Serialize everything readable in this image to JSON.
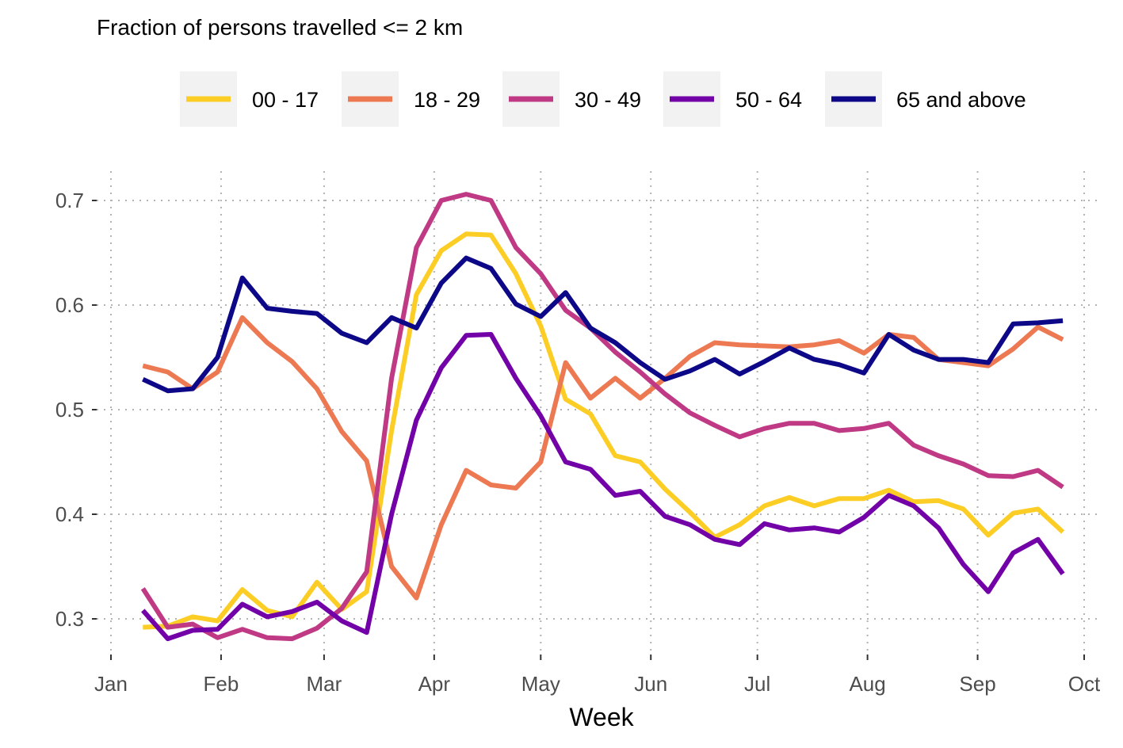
{
  "chart_data": {
    "type": "line",
    "title": "Fraction of persons travelled <= 2 km",
    "xlabel": "Week",
    "ylabel": "",
    "x_ticks": [
      "Jan",
      "Feb",
      "Mar",
      "Apr",
      "May",
      "Jun",
      "Jul",
      "Aug",
      "Sep",
      "Oct"
    ],
    "y_ticks": [
      "0.3",
      "0.4",
      "0.5",
      "0.6",
      "0.7"
    ],
    "ylim": [
      0.26,
      0.73
    ],
    "grid": true,
    "legend_position": "top",
    "x": [
      "2020-01-10",
      "2020-01-17",
      "2020-01-24",
      "2020-01-31",
      "2020-02-07",
      "2020-02-14",
      "2020-02-21",
      "2020-02-28",
      "2020-03-06",
      "2020-03-13",
      "2020-03-20",
      "2020-03-27",
      "2020-04-03",
      "2020-04-10",
      "2020-04-17",
      "2020-04-24",
      "2020-05-01",
      "2020-05-08",
      "2020-05-15",
      "2020-05-22",
      "2020-05-29",
      "2020-06-05",
      "2020-06-12",
      "2020-06-19",
      "2020-06-26",
      "2020-07-03",
      "2020-07-10",
      "2020-07-17",
      "2020-07-24",
      "2020-07-31",
      "2020-08-07",
      "2020-08-14",
      "2020-08-21",
      "2020-08-28",
      "2020-09-04",
      "2020-09-11",
      "2020-09-18",
      "2020-09-25"
    ],
    "series": [
      {
        "name": "00 - 17",
        "color": "#FCCE25",
        "values": [
          0.292,
          0.293,
          0.302,
          0.298,
          0.328,
          0.308,
          0.302,
          0.335,
          0.309,
          0.326,
          0.48,
          0.61,
          0.652,
          0.668,
          0.667,
          0.63,
          0.58,
          0.51,
          0.496,
          0.456,
          0.45,
          0.424,
          0.402,
          0.378,
          0.39,
          0.408,
          0.416,
          0.408,
          0.415,
          0.415,
          0.423,
          0.412,
          0.413,
          0.405,
          0.38,
          0.401,
          0.405,
          0.383
        ]
      },
      {
        "name": "18 - 29",
        "color": "#ED7953",
        "values": [
          0.542,
          0.536,
          0.52,
          0.536,
          0.588,
          0.564,
          0.546,
          0.52,
          0.479,
          0.451,
          0.35,
          0.32,
          0.39,
          0.442,
          0.428,
          0.425,
          0.45,
          0.545,
          0.511,
          0.53,
          0.511,
          0.53,
          0.551,
          0.564,
          0.562,
          0.561,
          0.56,
          0.562,
          0.566,
          0.554,
          0.572,
          0.569,
          0.548,
          0.545,
          0.542,
          0.558,
          0.579,
          0.567
        ]
      },
      {
        "name": "30 - 49",
        "color": "#BF3984",
        "values": [
          0.329,
          0.292,
          0.295,
          0.282,
          0.29,
          0.282,
          0.281,
          0.291,
          0.31,
          0.345,
          0.53,
          0.655,
          0.7,
          0.706,
          0.7,
          0.655,
          0.63,
          0.595,
          0.578,
          0.555,
          0.536,
          0.515,
          0.497,
          0.485,
          0.474,
          0.482,
          0.487,
          0.487,
          0.48,
          0.482,
          0.487,
          0.466,
          0.456,
          0.448,
          0.437,
          0.436,
          0.442,
          0.426
        ]
      },
      {
        "name": "50 - 64",
        "color": "#7201A8",
        "values": [
          0.308,
          0.281,
          0.289,
          0.29,
          0.314,
          0.302,
          0.307,
          0.316,
          0.298,
          0.287,
          0.4,
          0.49,
          0.54,
          0.571,
          0.572,
          0.53,
          0.494,
          0.45,
          0.443,
          0.418,
          0.422,
          0.398,
          0.39,
          0.376,
          0.371,
          0.391,
          0.385,
          0.387,
          0.383,
          0.397,
          0.418,
          0.408,
          0.387,
          0.352,
          0.326,
          0.363,
          0.376,
          0.343
        ]
      },
      {
        "name": "65 and above",
        "color": "#0D0887",
        "values": [
          0.529,
          0.518,
          0.52,
          0.55,
          0.626,
          0.597,
          0.594,
          0.592,
          0.573,
          0.564,
          0.588,
          0.578,
          0.621,
          0.645,
          0.635,
          0.601,
          0.589,
          0.612,
          0.578,
          0.564,
          0.545,
          0.529,
          0.537,
          0.548,
          0.534,
          0.546,
          0.559,
          0.548,
          0.543,
          0.535,
          0.572,
          0.557,
          0.548,
          0.548,
          0.545,
          0.582,
          0.583,
          0.585
        ]
      }
    ]
  }
}
